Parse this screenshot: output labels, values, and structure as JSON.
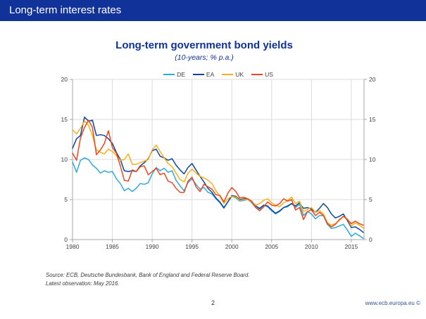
{
  "header": {
    "title": "Long-term interest rates"
  },
  "chart_data": {
    "type": "line",
    "title": "Long-term government bond yields",
    "subtitle": "(10-years; % p.a.)",
    "xlabel": "",
    "ylabel": "",
    "grid": true,
    "legend_position": "top-center",
    "xlim": [
      1980,
      2016.6
    ],
    "ylim": [
      0,
      20
    ],
    "x_ticks": [
      1980,
      1985,
      1990,
      1995,
      2000,
      2005,
      2010,
      2015
    ],
    "y_ticks": [
      0,
      5,
      10,
      15,
      20
    ],
    "x_start": 1980,
    "x_step": 0.5,
    "x_unit": "year (semi-annual points, last point = May 2016)",
    "series": [
      {
        "name": "DE",
        "color": "#2fa8dc",
        "values": [
          9.7,
          8.4,
          9.9,
          10.2,
          10.0,
          9.3,
          8.9,
          8.3,
          8.6,
          8.4,
          8.5,
          7.6,
          7.0,
          6.1,
          6.4,
          6.0,
          6.4,
          7.0,
          6.9,
          7.1,
          8.2,
          9.0,
          8.6,
          8.9,
          8.4,
          8.6,
          7.4,
          6.7,
          6.1,
          7.1,
          7.6,
          6.9,
          6.3,
          6.5,
          5.9,
          5.7,
          5.1,
          4.6,
          3.9,
          4.7,
          5.4,
          5.2,
          4.8,
          4.9,
          5.0,
          4.6,
          4.0,
          3.8,
          4.3,
          4.1,
          3.6,
          3.2,
          3.5,
          4.0,
          4.1,
          4.5,
          4.0,
          4.4,
          3.0,
          3.5,
          3.2,
          2.6,
          3.0,
          3.0,
          1.9,
          1.4,
          1.5,
          1.7,
          1.9,
          1.2,
          0.4,
          0.8,
          0.5,
          0.15
        ]
      },
      {
        "name": "EA",
        "color": "#0f459e",
        "values": [
          11.4,
          12.6,
          13.0,
          15.3,
          14.8,
          14.9,
          13.0,
          13.1,
          13.0,
          12.6,
          12.0,
          10.9,
          10.0,
          8.6,
          8.5,
          8.6,
          8.5,
          9.2,
          9.6,
          10.1,
          11.1,
          11.3,
          10.4,
          10.2,
          9.9,
          10.1,
          9.3,
          8.7,
          8.2,
          9.0,
          9.5,
          8.7,
          7.9,
          7.2,
          6.4,
          5.9,
          5.2,
          4.7,
          4.0,
          4.7,
          5.5,
          5.4,
          5.0,
          5.1,
          5.1,
          4.7,
          4.2,
          3.9,
          4.3,
          4.2,
          3.7,
          3.3,
          3.6,
          4.0,
          4.2,
          4.5,
          4.2,
          4.6,
          3.9,
          4.0,
          3.8,
          3.4,
          3.9,
          4.5,
          4.0,
          3.2,
          2.7,
          2.9,
          3.2,
          2.4,
          1.5,
          1.6,
          1.3,
          0.9
        ]
      },
      {
        "name": "UK",
        "color": "#f9b016",
        "values": [
          13.7,
          13.2,
          13.9,
          14.8,
          14.3,
          13.0,
          11.2,
          10.9,
          10.7,
          11.3,
          11.0,
          10.5,
          9.9,
          10.0,
          10.7,
          9.4,
          9.4,
          9.6,
          9.8,
          10.0,
          11.2,
          11.8,
          11.0,
          10.2,
          9.5,
          9.1,
          8.3,
          7.5,
          7.2,
          8.3,
          8.8,
          8.3,
          7.9,
          7.7,
          7.4,
          7.0,
          6.1,
          5.4,
          4.5,
          5.1,
          5.4,
          5.3,
          4.9,
          5.0,
          5.0,
          4.7,
          4.3,
          4.5,
          4.9,
          5.1,
          4.6,
          4.3,
          4.1,
          4.6,
          4.9,
          5.3,
          4.5,
          4.8,
          3.5,
          3.8,
          4.0,
          3.4,
          3.6,
          3.2,
          2.1,
          1.8,
          2.0,
          2.4,
          2.9,
          2.6,
          1.7,
          2.1,
          1.8,
          1.45
        ]
      },
      {
        "name": "US",
        "color": "#f0461e",
        "values": [
          10.8,
          9.9,
          12.7,
          14.0,
          14.9,
          14.0,
          10.6,
          11.2,
          12.0,
          13.6,
          11.5,
          10.8,
          9.2,
          7.4,
          7.3,
          8.7,
          8.5,
          9.1,
          9.2,
          8.1,
          8.5,
          8.9,
          8.1,
          8.3,
          7.3,
          7.1,
          6.4,
          5.9,
          5.9,
          7.3,
          7.8,
          6.6,
          6.0,
          6.9,
          6.6,
          6.3,
          5.6,
          5.5,
          4.7,
          5.8,
          6.5,
          6.0,
          5.2,
          5.3,
          5.1,
          4.8,
          4.0,
          3.6,
          4.1,
          4.7,
          4.3,
          4.2,
          4.5,
          5.1,
          4.8,
          5.0,
          3.7,
          4.0,
          2.5,
          3.5,
          3.7,
          3.0,
          3.4,
          3.0,
          2.0,
          1.6,
          1.9,
          2.5,
          2.9,
          2.5,
          2.0,
          2.3,
          2.0,
          1.8
        ]
      }
    ]
  },
  "source": {
    "line1": "Source: ECB, Deutsche Bundesbank, Bank of England and Federal Reserve Board.",
    "line2": "Latest observation: May 2016."
  },
  "footer": {
    "page_number": "2",
    "website": "www.ecb.europa.eu ©"
  },
  "colors": {
    "header_bg": "#113299",
    "title_text": "#0f3199",
    "gridline": "#dbdbdb",
    "axis": "#a6a6a6",
    "tick_label": "#3f3f3f",
    "link": "#35539e"
  }
}
